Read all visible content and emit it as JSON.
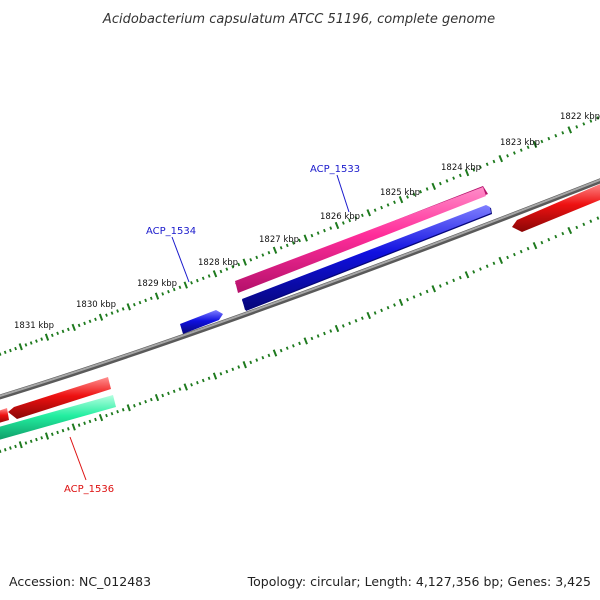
{
  "title": "Acidobacterium capsulatum ATCC 51196, complete genome",
  "footer": {
    "accession": "Accession: NC_012483",
    "summary": "Topology: circular; Length: 4,127,356 bp; Genes: 3,425"
  },
  "kbp_labels": [
    "1822 kbp",
    "1823 kbp",
    "1824 kbp",
    "1825 kbp",
    "1826 kbp",
    "1827 kbp",
    "1828 kbp",
    "1829 kbp",
    "1830 kbp",
    "1831 kbp"
  ],
  "gene_labels": {
    "acp1533": "ACP_1533",
    "acp1534": "ACP_1534",
    "acp1536": "ACP_1536"
  },
  "colors": {
    "backbone": "#8a8a8a",
    "ticks": "#1e7a1e",
    "forward_cds": "#ff2d9a",
    "forward_cds_2": "#1010e0",
    "reverse_cds": "#ee1111",
    "rna": "#22eea0",
    "label_forward": "#1a1acc",
    "label_reverse": "#dd1111"
  }
}
